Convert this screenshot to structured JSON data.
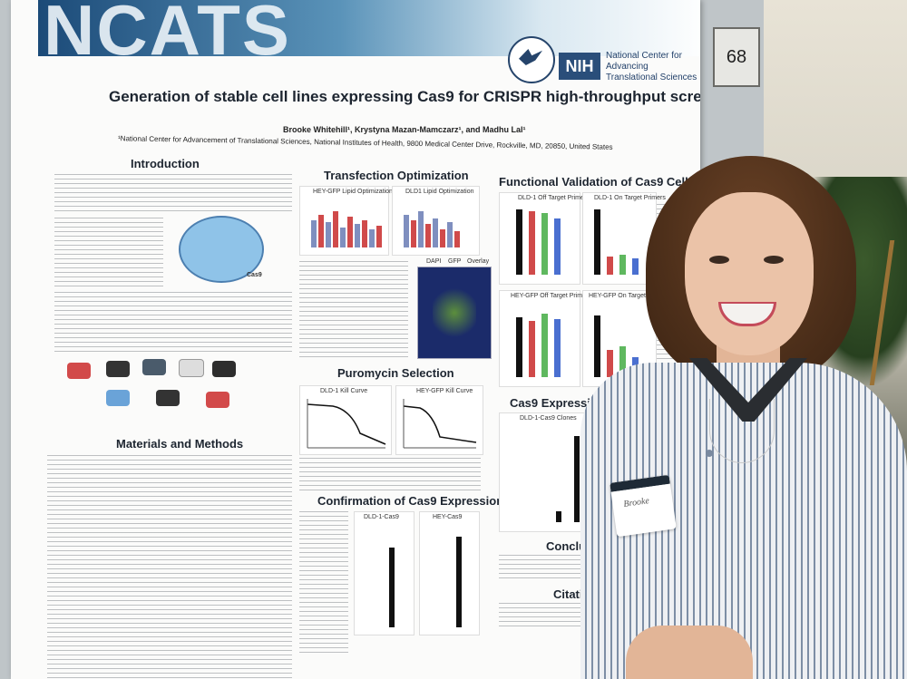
{
  "booth_number": "68",
  "banner": {
    "logo_text": "NCATS",
    "nih_label": "NIH",
    "org_name": "National Center for\nAdvancing\nTranslational Sciences"
  },
  "poster": {
    "title": "Generation of stable cell lines expressing Cas9 for CRISPR high-throughput screening.",
    "authors": "Brooke Whitehill¹, Krystyna Mazan-Mamczarz¹, and Madhu Lal¹",
    "affiliation": "¹National Center for Advancement of Translational Sciences, National Institutes of Health, 9800 Medical Center Drive, Rockville, MD, 20850, United States",
    "sections": {
      "introduction": "Introduction",
      "transfection": "Transfection Optimization",
      "functional": "Functional Validation of Cas9 Cell Lines",
      "puromycin": "Puromycin Selection",
      "materials": "Materials and Methods",
      "confirmation": "Confirmation of Cas9 Expression",
      "cas9_stable": "Cas9 Expression in Stable C",
      "conclusion": "Conclusio",
      "citations": "Citation"
    },
    "figure_labels": {
      "hey_lipid": "HEY-GFP Lipid Optimization",
      "dld_lipid": "DLD1 Lipid Optimization",
      "dld_off": "DLD-1 Off Target Primers",
      "dld_on": "DLD-1 On Target Primers",
      "hey_off": "HEY-GFP Off Target Primers",
      "hey_on": "HEY-GFP On Target Primers",
      "dld_kill": "DLD-1 Kill Curve",
      "hey_kill": "HEY-GFP Kill Curve",
      "dld_cas9": "DLD-1-Cas9",
      "hey_cas9": "HEY-Cas9",
      "dld_clones": "DLD-1-Cas9 Clones",
      "dapi": "DAPI",
      "gfp": "GFP",
      "overlay": "Overlay",
      "cas9_diagram": "Cas9"
    }
  },
  "person": {
    "nametag": "Brooke"
  },
  "colors": {
    "banner_dark": "#1b4a78",
    "nih_blue": "#2a4e7a"
  }
}
